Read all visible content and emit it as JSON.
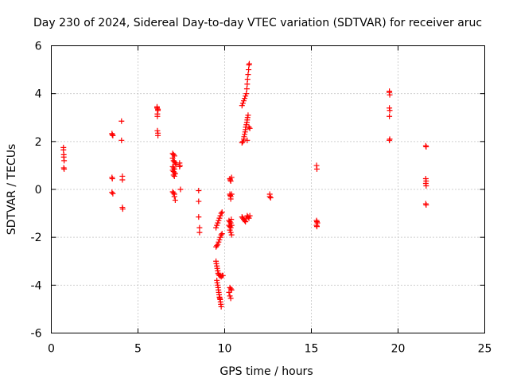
{
  "chart_data": {
    "type": "scatter",
    "title": "Day 230 of 2024, Sidereal Day-to-day VTEC variation (SDTVAR) for receiver aruc",
    "xlabel": "GPS time / hours",
    "ylabel": "SDTVAR / TECUs",
    "xlim": [
      0,
      25
    ],
    "ylim": [
      -6,
      6
    ],
    "xticks": [
      0,
      5,
      10,
      15,
      20,
      25
    ],
    "yticks": [
      -6,
      -4,
      -2,
      0,
      2,
      4,
      6
    ],
    "xtick_labels": [
      "0",
      "5",
      "10",
      "15",
      "20",
      "25"
    ],
    "ytick_labels": [
      "-6",
      "-4",
      "-2",
      "0",
      "2",
      "4",
      "6"
    ],
    "grid": true,
    "marker": "+",
    "color": "#ff0000",
    "series": [
      {
        "name": "SDTVAR",
        "points": [
          [
            0.7,
            1.75
          ],
          [
            0.7,
            1.65
          ],
          [
            0.72,
            1.45
          ],
          [
            0.72,
            1.35
          ],
          [
            0.74,
            1.2
          ],
          [
            0.72,
            0.9
          ],
          [
            0.74,
            0.85
          ],
          [
            3.5,
            2.33
          ],
          [
            3.52,
            2.28
          ],
          [
            3.55,
            2.25
          ],
          [
            3.5,
            0.5
          ],
          [
            3.52,
            0.45
          ],
          [
            3.5,
            -0.12
          ],
          [
            3.55,
            -0.18
          ],
          [
            4.05,
            2.85
          ],
          [
            4.05,
            2.05
          ],
          [
            4.1,
            0.55
          ],
          [
            4.1,
            0.4
          ],
          [
            4.1,
            -0.75
          ],
          [
            4.12,
            -0.82
          ],
          [
            6.1,
            3.45
          ],
          [
            6.1,
            3.4
          ],
          [
            6.15,
            3.35
          ],
          [
            6.15,
            3.3
          ],
          [
            6.12,
            3.15
          ],
          [
            6.12,
            3.05
          ],
          [
            6.12,
            2.45
          ],
          [
            6.15,
            2.35
          ],
          [
            6.15,
            2.25
          ],
          [
            7.0,
            1.5
          ],
          [
            7.05,
            1.45
          ],
          [
            7.1,
            1.4
          ],
          [
            7.0,
            1.3
          ],
          [
            7.05,
            1.2
          ],
          [
            7.1,
            1.15
          ],
          [
            7.15,
            1.1
          ],
          [
            7.2,
            1.05
          ],
          [
            7.0,
            0.95
          ],
          [
            7.05,
            0.9
          ],
          [
            7.1,
            0.85
          ],
          [
            7.0,
            0.8
          ],
          [
            7.05,
            0.75
          ],
          [
            7.1,
            0.7
          ],
          [
            7.15,
            0.65
          ],
          [
            7.05,
            0.6
          ],
          [
            7.1,
            0.55
          ],
          [
            7.0,
            -0.1
          ],
          [
            7.05,
            -0.15
          ],
          [
            7.1,
            -0.2
          ],
          [
            7.1,
            -0.3
          ],
          [
            7.15,
            -0.45
          ],
          [
            7.4,
            1.1
          ],
          [
            7.42,
            1.0
          ],
          [
            7.4,
            0.95
          ],
          [
            7.45,
            0.0
          ],
          [
            8.5,
            -0.05
          ],
          [
            8.5,
            -0.5
          ],
          [
            8.5,
            -1.15
          ],
          [
            8.55,
            -1.6
          ],
          [
            8.55,
            -1.8
          ],
          [
            9.5,
            -2.4
          ],
          [
            9.55,
            -2.35
          ],
          [
            9.6,
            -2.3
          ],
          [
            9.65,
            -2.2
          ],
          [
            9.7,
            -2.1
          ],
          [
            9.75,
            -2.0
          ],
          [
            9.8,
            -1.9
          ],
          [
            9.85,
            -1.85
          ],
          [
            9.5,
            -1.6
          ],
          [
            9.55,
            -1.5
          ],
          [
            9.6,
            -1.4
          ],
          [
            9.65,
            -1.3
          ],
          [
            9.7,
            -1.2
          ],
          [
            9.75,
            -1.1
          ],
          [
            9.8,
            -1.0
          ],
          [
            9.85,
            -0.95
          ],
          [
            9.5,
            -3.0
          ],
          [
            9.52,
            -3.1
          ],
          [
            9.55,
            -3.2
          ],
          [
            9.57,
            -3.3
          ],
          [
            9.6,
            -3.4
          ],
          [
            9.62,
            -3.5
          ],
          [
            9.65,
            -3.55
          ],
          [
            9.7,
            -3.6
          ],
          [
            9.75,
            -3.6
          ],
          [
            9.8,
            -3.65
          ],
          [
            9.85,
            -3.6
          ],
          [
            9.9,
            -3.6
          ],
          [
            9.55,
            -3.8
          ],
          [
            9.57,
            -3.9
          ],
          [
            9.6,
            -4.0
          ],
          [
            9.62,
            -4.1
          ],
          [
            9.64,
            -4.2
          ],
          [
            9.66,
            -4.3
          ],
          [
            9.68,
            -4.4
          ],
          [
            9.7,
            -4.5
          ],
          [
            9.72,
            -4.55
          ],
          [
            9.74,
            -4.6
          ],
          [
            9.76,
            -4.7
          ],
          [
            9.78,
            -4.8
          ],
          [
            9.8,
            -4.9
          ],
          [
            10.3,
            0.45
          ],
          [
            10.32,
            0.4
          ],
          [
            10.35,
            0.35
          ],
          [
            10.4,
            0.5
          ],
          [
            10.3,
            -0.2
          ],
          [
            10.32,
            -0.25
          ],
          [
            10.35,
            -0.3
          ],
          [
            10.4,
            -0.2
          ],
          [
            10.35,
            -0.4
          ],
          [
            10.25,
            -1.3
          ],
          [
            10.3,
            -1.35
          ],
          [
            10.35,
            -1.4
          ],
          [
            10.25,
            -1.5
          ],
          [
            10.3,
            -1.55
          ],
          [
            10.35,
            -1.6
          ],
          [
            10.4,
            -1.5
          ],
          [
            10.3,
            -1.7
          ],
          [
            10.35,
            -1.8
          ],
          [
            10.4,
            -1.9
          ],
          [
            10.38,
            -1.25
          ],
          [
            10.3,
            -4.1
          ],
          [
            10.35,
            -4.15
          ],
          [
            10.4,
            -4.2
          ],
          [
            10.25,
            -4.3
          ],
          [
            10.3,
            -4.45
          ],
          [
            10.35,
            -4.55
          ],
          [
            11.0,
            3.5
          ],
          [
            11.05,
            3.6
          ],
          [
            11.1,
            3.7
          ],
          [
            11.15,
            3.8
          ],
          [
            11.2,
            3.9
          ],
          [
            11.25,
            4.0
          ],
          [
            11.28,
            4.2
          ],
          [
            11.3,
            4.4
          ],
          [
            11.32,
            4.6
          ],
          [
            11.35,
            4.8
          ],
          [
            11.38,
            5.0
          ],
          [
            11.4,
            5.2
          ],
          [
            11.42,
            5.25
          ],
          [
            11.05,
            2.0
          ],
          [
            11.1,
            2.1
          ],
          [
            11.12,
            2.2
          ],
          [
            11.15,
            2.3
          ],
          [
            11.18,
            2.4
          ],
          [
            11.2,
            2.5
          ],
          [
            11.22,
            2.6
          ],
          [
            11.25,
            2.7
          ],
          [
            11.28,
            2.8
          ],
          [
            11.3,
            2.9
          ],
          [
            11.32,
            3.0
          ],
          [
            11.35,
            3.1
          ],
          [
            11.4,
            2.6
          ],
          [
            11.45,
            2.55
          ],
          [
            11.0,
            1.95
          ],
          [
            11.3,
            2.05
          ],
          [
            11.0,
            -1.15
          ],
          [
            11.05,
            -1.2
          ],
          [
            11.1,
            -1.25
          ],
          [
            11.15,
            -1.3
          ],
          [
            11.2,
            -1.35
          ],
          [
            11.25,
            -1.2
          ],
          [
            11.3,
            -1.1
          ],
          [
            11.35,
            -1.15
          ],
          [
            11.4,
            -1.2
          ],
          [
            11.45,
            -1.1
          ],
          [
            12.6,
            -0.2
          ],
          [
            12.6,
            -0.3
          ],
          [
            12.65,
            -0.35
          ],
          [
            15.3,
            1.0
          ],
          [
            15.32,
            0.85
          ],
          [
            15.3,
            -1.3
          ],
          [
            15.32,
            -1.35
          ],
          [
            15.35,
            -1.4
          ],
          [
            15.3,
            -1.5
          ],
          [
            15.32,
            -1.55
          ],
          [
            19.5,
            4.1
          ],
          [
            19.5,
            4.05
          ],
          [
            19.52,
            3.95
          ],
          [
            19.5,
            3.4
          ],
          [
            19.52,
            3.3
          ],
          [
            19.5,
            3.05
          ],
          [
            19.52,
            2.1
          ],
          [
            19.5,
            2.05
          ],
          [
            21.6,
            1.82
          ],
          [
            21.62,
            1.78
          ],
          [
            21.6,
            0.45
          ],
          [
            21.62,
            0.35
          ],
          [
            21.6,
            0.25
          ],
          [
            21.62,
            0.15
          ],
          [
            21.6,
            -0.6
          ],
          [
            21.62,
            -0.65
          ]
        ]
      }
    ]
  }
}
